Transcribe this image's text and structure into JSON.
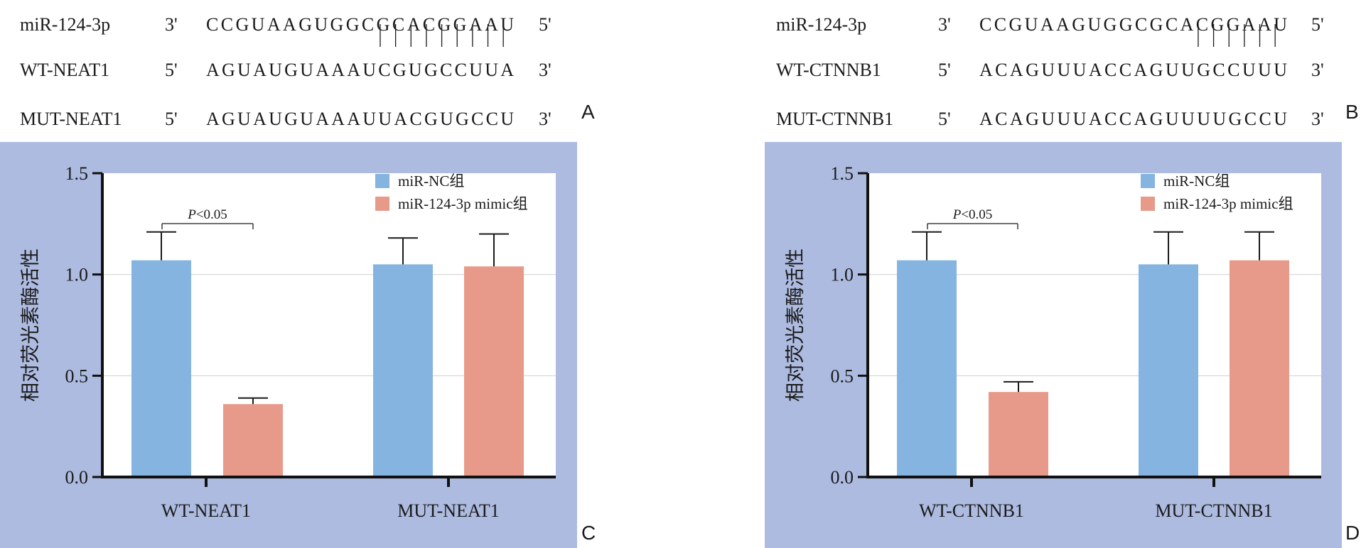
{
  "panels": [
    {
      "letter": "A",
      "rows": [
        {
          "name": "miR-124-3p",
          "end_left": "3'",
          "seq": "CCGUAAGUGGCGCACGGAAU",
          "end_right": "5'"
        },
        {
          "name": "WT-NEAT1",
          "end_left": "5'",
          "seq": "AGUAUGUAAAUCGUGCCUUA",
          "end_right": "3'"
        },
        {
          "name": "MUT-NEAT1",
          "end_left": "5'",
          "seq": "AGUAUGUAAAUUACGUGCCU",
          "end_right": "3'"
        }
      ],
      "pair_count": 9
    },
    {
      "letter": "B",
      "rows": [
        {
          "name": "miR-124-3p",
          "end_left": "3'",
          "seq": "CCGUAAGUGGCGCACGGAAU",
          "end_right": "5'"
        },
        {
          "name": "WT-CTNNB1",
          "end_left": "5'",
          "seq": "ACAGUUUACCAGUUGCCUUU",
          "end_right": "3'"
        },
        {
          "name": "MUT-CTNNB1",
          "end_left": "5'",
          "seq": "ACAGUUUACCAGUUUUGCCU",
          "end_right": "3'"
        }
      ],
      "pair_count": 6
    }
  ],
  "chart_data": [
    {
      "letter": "C",
      "type": "bar",
      "ylabel": "相对荧光素酶活性",
      "ylim": [
        0,
        1.5
      ],
      "yticks": [
        "0.0",
        "0.5",
        "1.0",
        "1.5"
      ],
      "grid": true,
      "legend_position": "top-right",
      "categories": [
        "WT-NEAT1",
        "MUT-NEAT1"
      ],
      "series": [
        {
          "name": "miR-NC组",
          "color": "#85b4e0",
          "values": [
            1.07,
            1.05
          ],
          "errors": [
            0.14,
            0.13
          ]
        },
        {
          "name": "miR-124-3p mimic组",
          "color": "#e89a8a",
          "values": [
            0.36,
            1.04
          ],
          "errors": [
            0.03,
            0.16
          ]
        }
      ],
      "annotation": {
        "text": "P<0.05",
        "category": "WT-NEAT1"
      },
      "background": "#adbbe0"
    },
    {
      "letter": "D",
      "type": "bar",
      "ylabel": "相对荧光素酶活性",
      "ylim": [
        0,
        1.5
      ],
      "yticks": [
        "0.0",
        "0.5",
        "1.0",
        "1.5"
      ],
      "grid": true,
      "legend_position": "top-right",
      "categories": [
        "WT-CTNNB1",
        "MUT-CTNNB1"
      ],
      "series": [
        {
          "name": "miR-NC组",
          "color": "#85b4e0",
          "values": [
            1.07,
            1.05
          ],
          "errors": [
            0.14,
            0.16
          ]
        },
        {
          "name": "miR-124-3p mimic组",
          "color": "#e89a8a",
          "values": [
            0.42,
            1.07
          ],
          "errors": [
            0.05,
            0.14
          ]
        }
      ],
      "annotation": {
        "text": "P<0.05",
        "category": "WT-CTNNB1"
      },
      "background": "#adbbe0"
    }
  ]
}
